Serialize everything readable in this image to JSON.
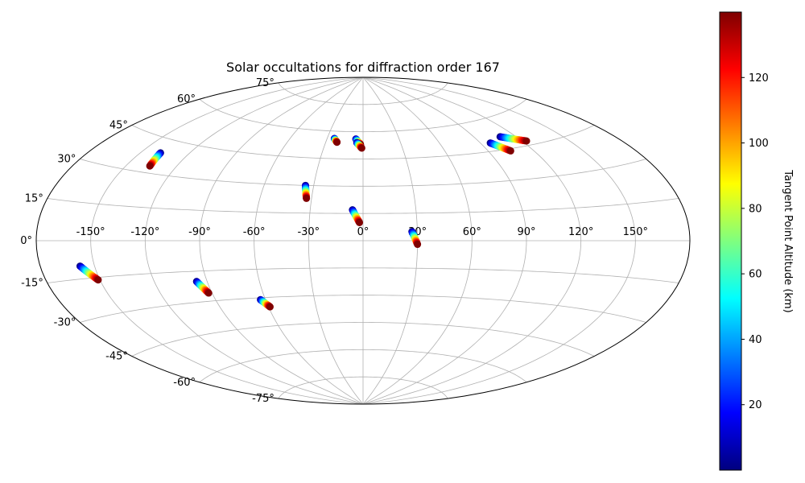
{
  "chart_data": {
    "type": "scatter",
    "projection": "aitoff",
    "title": "Solar occultations for diffraction order 167",
    "xlabel": "",
    "ylabel": "",
    "grid": true,
    "longitude_ticks": [
      -150,
      -120,
      -90,
      -60,
      -30,
      0,
      30,
      60,
      90,
      120,
      150
    ],
    "longitude_tick_labels": [
      "-150°",
      "-120°",
      "-90°",
      "-60°",
      "-30°",
      "0°",
      "30°",
      "60°",
      "90°",
      "120°",
      "150°"
    ],
    "latitude_ticks": [
      -75,
      -60,
      -45,
      -30,
      -15,
      0,
      15,
      30,
      45,
      60,
      75
    ],
    "latitude_tick_labels": [
      "-75°",
      "-60°",
      "-45°",
      "-30°",
      "-15°",
      "0°",
      "15°",
      "30°",
      "45°",
      "60°",
      "75°"
    ],
    "colorbar": {
      "label": "Tangent Point Altitude (km)",
      "colormap": "jet",
      "range": [
        0,
        140
      ],
      "ticks": [
        20,
        40,
        60,
        80,
        100,
        120
      ],
      "tick_labels": [
        "20",
        "40",
        "60",
        "80",
        "100",
        "120"
      ]
    },
    "tracks": [
      {
        "start": [
          -158,
          -10
        ],
        "end": [
          -151,
          -16
        ],
        "alt_range": [
          0,
          140
        ]
      },
      {
        "start": [
          -138,
          39
        ],
        "end": [
          -136,
          33
        ],
        "alt_range": [
          0,
          140
        ]
      },
      {
        "start": [
          -96,
          -20
        ],
        "end": [
          -92,
          -26
        ],
        "alt_range": [
          0,
          140
        ]
      },
      {
        "start": [
          -63,
          -31
        ],
        "end": [
          -59,
          -35
        ],
        "alt_range": [
          0,
          140
        ]
      },
      {
        "start": [
          -35,
          30
        ],
        "end": [
          -33,
          23
        ],
        "alt_range": [
          0,
          140
        ]
      },
      {
        "start": [
          -24,
          56
        ],
        "end": [
          -21,
          54
        ],
        "alt_range": [
          0,
          140
        ]
      },
      {
        "start": [
          -6,
          17
        ],
        "end": [
          -2,
          10
        ],
        "alt_range": [
          0,
          140
        ]
      },
      {
        "start": [
          -6,
          56
        ],
        "end": [
          -2,
          53
        ],
        "alt_range": [
          0,
          140
        ]
      },
      {
        "start": [
          -5,
          54
        ],
        "end": [
          -1,
          51
        ],
        "alt_range": [
          0,
          140
        ]
      },
      {
        "start": [
          27,
          5
        ],
        "end": [
          30,
          -2
        ],
        "alt_range": [
          0,
          140
        ]
      },
      {
        "start": [
          97,
          49
        ],
        "end": [
          105,
          44
        ],
        "alt_range": [
          0,
          140
        ]
      },
      {
        "start": [
          109,
          51
        ],
        "end": [
          123,
          47
        ],
        "alt_range": [
          0,
          140
        ]
      }
    ]
  }
}
